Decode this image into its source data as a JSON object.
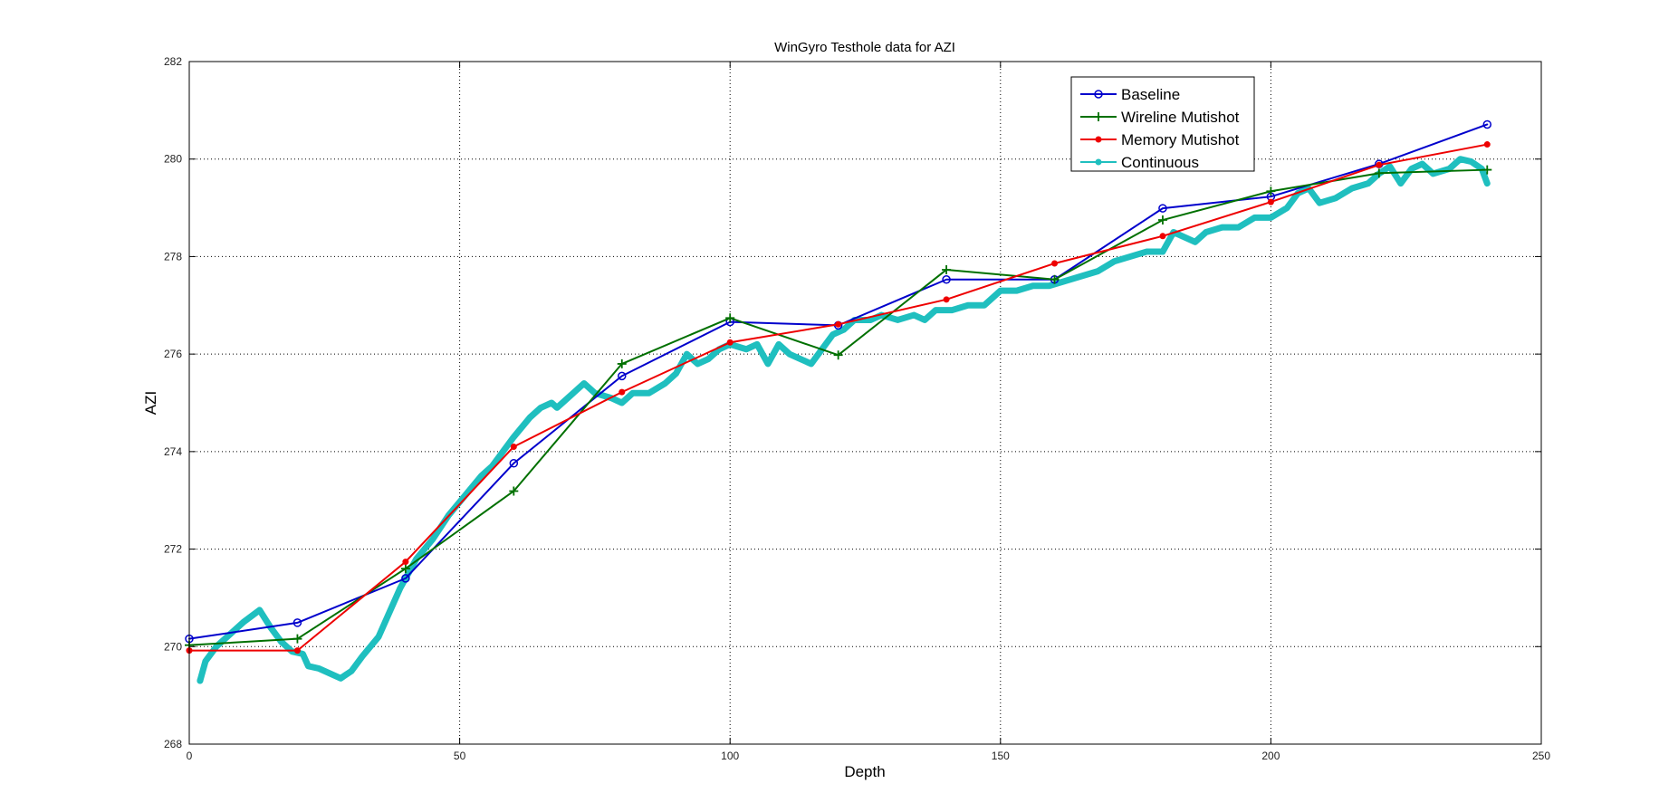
{
  "chart_data": {
    "type": "line",
    "title": "WinGyro Testhole data for AZI",
    "xlabel": "Depth",
    "ylabel": "AZI",
    "xlim": [
      0,
      250
    ],
    "ylim": [
      268,
      282
    ],
    "xticks": [
      0,
      50,
      100,
      150,
      200,
      250
    ],
    "yticks": [
      268,
      270,
      272,
      274,
      276,
      278,
      280,
      282
    ],
    "grid": true,
    "legend_position": "top-right",
    "series": [
      {
        "name": "Baseline",
        "color": "#0000cc",
        "marker": "circle",
        "x": [
          0,
          20,
          40,
          60,
          80,
          100,
          120,
          140,
          160,
          180,
          200,
          220,
          240
        ],
        "y": [
          270.16,
          270.49,
          271.4,
          273.76,
          275.55,
          276.66,
          276.59,
          277.53,
          277.53,
          278.99,
          279.23,
          279.9,
          280.71
        ]
      },
      {
        "name": "Wireline Mutishot",
        "color": "#007000",
        "marker": "plus",
        "x": [
          0,
          20,
          40,
          60,
          80,
          100,
          120,
          140,
          160,
          180,
          200,
          220,
          240
        ],
        "y": [
          270.03,
          270.16,
          271.6,
          273.19,
          275.8,
          276.74,
          275.98,
          277.73,
          277.53,
          278.75,
          279.34,
          279.71,
          279.78
        ]
      },
      {
        "name": "Memory Mutishot",
        "color": "#ee0000",
        "marker": "dot",
        "x": [
          0,
          20,
          40,
          60,
          80,
          100,
          120,
          140,
          160,
          180,
          200,
          220,
          240
        ],
        "y": [
          269.92,
          269.92,
          271.74,
          274.1,
          275.22,
          276.24,
          276.61,
          277.12,
          277.86,
          278.42,
          279.12,
          279.88,
          280.3
        ]
      },
      {
        "name": "Continuous",
        "color": "#1fbfbf",
        "marker": "dot",
        "x": [
          2,
          3,
          5,
          8,
          10,
          13,
          15,
          17,
          19,
          21,
          22,
          24,
          26,
          28,
          30,
          32,
          35,
          37,
          39,
          42,
          45,
          48,
          51,
          54,
          56,
          58,
          60,
          63,
          65,
          67,
          68,
          70,
          73,
          75,
          78,
          80,
          82,
          85,
          88,
          90,
          92,
          94,
          96,
          98,
          100,
          103,
          105,
          107,
          109,
          111,
          113,
          115,
          117,
          119,
          121,
          123,
          126,
          128,
          131,
          134,
          136,
          138,
          141,
          144,
          147,
          150,
          153,
          156,
          159,
          162,
          165,
          168,
          171,
          174,
          177,
          180,
          182,
          184,
          186,
          188,
          191,
          194,
          197,
          200,
          203,
          205,
          207,
          209,
          212,
          215,
          218,
          220,
          222,
          224,
          226,
          228,
          230,
          233,
          235,
          237,
          239,
          240
        ],
        "y": [
          269.3,
          269.7,
          270.0,
          270.3,
          270.5,
          270.75,
          270.4,
          270.1,
          269.9,
          269.85,
          269.6,
          269.55,
          269.45,
          269.35,
          269.5,
          269.8,
          270.2,
          270.7,
          271.2,
          271.8,
          272.2,
          272.7,
          273.1,
          273.5,
          273.7,
          274.0,
          274.3,
          274.7,
          274.9,
          275.0,
          274.9,
          275.1,
          275.4,
          275.2,
          275.1,
          275.0,
          275.2,
          275.2,
          275.4,
          275.6,
          276.0,
          275.8,
          275.9,
          276.1,
          276.2,
          276.1,
          276.2,
          275.8,
          276.2,
          276.0,
          275.9,
          275.8,
          276.1,
          276.4,
          276.5,
          276.7,
          276.7,
          276.8,
          276.7,
          276.8,
          276.7,
          276.9,
          276.9,
          277.0,
          277.0,
          277.3,
          277.3,
          277.4,
          277.4,
          277.5,
          277.6,
          277.7,
          277.9,
          278.0,
          278.1,
          278.1,
          278.5,
          278.4,
          278.3,
          278.5,
          278.6,
          278.6,
          278.8,
          278.8,
          279.0,
          279.3,
          279.4,
          279.1,
          279.2,
          279.4,
          279.5,
          279.7,
          279.85,
          279.5,
          279.8,
          279.9,
          279.7,
          279.8,
          280.0,
          279.95,
          279.8,
          279.5
        ]
      }
    ]
  }
}
